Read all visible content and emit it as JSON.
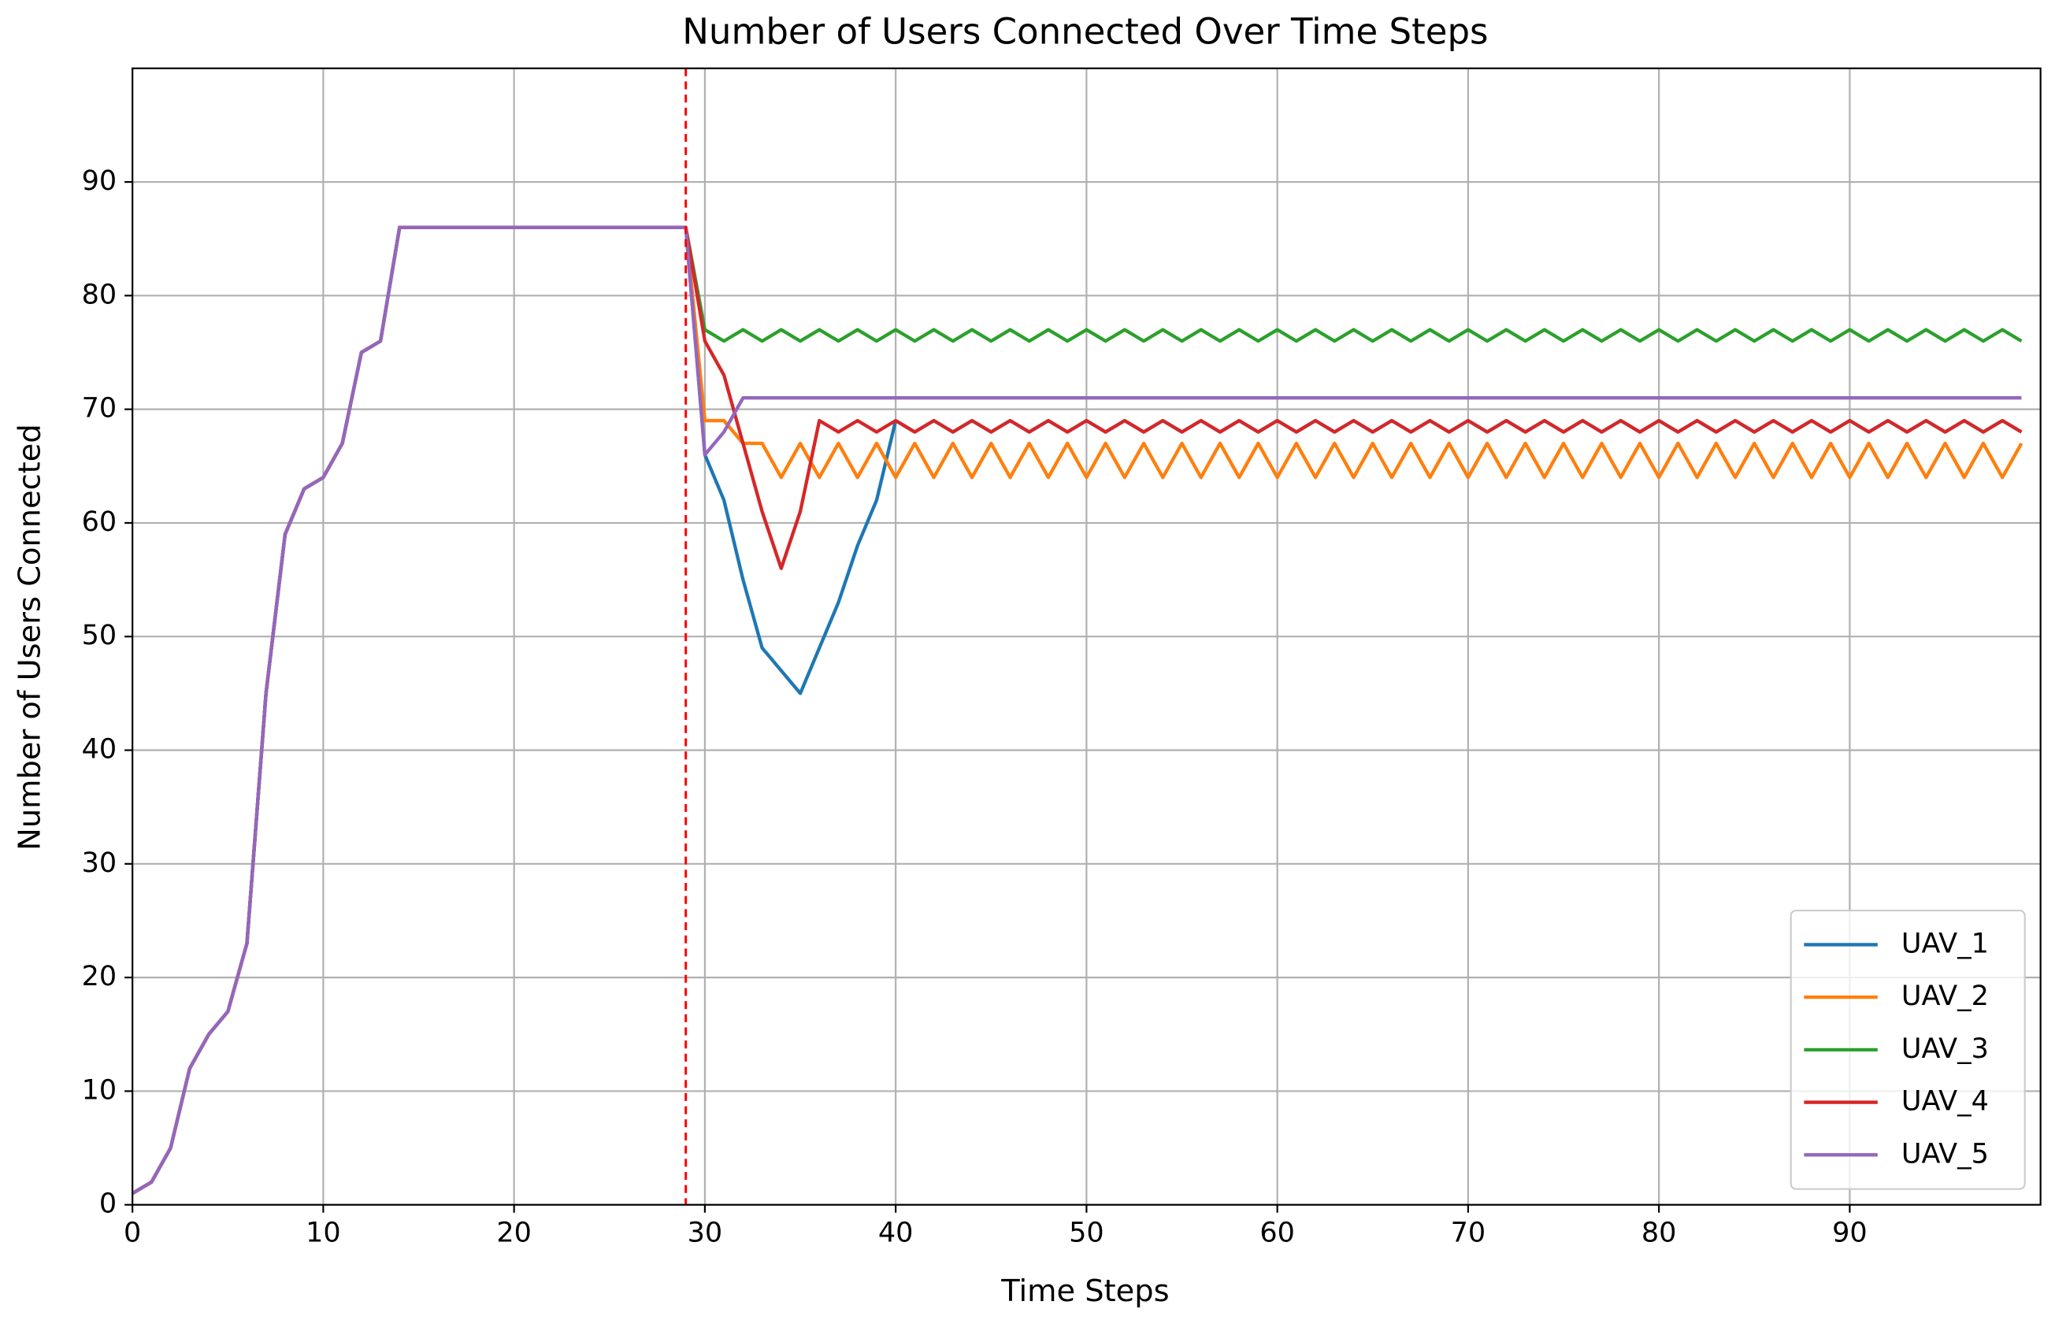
{
  "chart_data": {
    "type": "line",
    "title": "Number of Users Connected Over Time Steps",
    "x_label": "Time Steps",
    "y_label": "Number of Users Connected",
    "x": [
      0,
      1,
      2,
      3,
      4,
      5,
      6,
      7,
      8,
      9,
      10,
      11,
      12,
      13,
      14,
      15,
      16,
      17,
      18,
      19,
      20,
      21,
      22,
      23,
      24,
      25,
      26,
      27,
      28,
      29,
      30,
      31,
      32,
      33,
      34,
      35,
      36,
      37,
      38,
      39,
      40,
      41,
      42,
      43,
      44,
      45,
      46,
      47,
      48,
      49,
      50,
      51,
      52,
      53,
      54,
      55,
      56,
      57,
      58,
      59,
      60,
      61,
      62,
      63,
      64,
      65,
      66,
      67,
      68,
      69,
      70,
      71,
      72,
      73,
      74,
      75,
      76,
      77,
      78,
      79,
      80,
      81,
      82,
      83,
      84,
      85,
      86,
      87,
      88,
      89,
      90,
      91,
      92,
      93,
      94,
      95,
      96,
      97,
      98,
      99
    ],
    "series": [
      {
        "name": "UAV_1",
        "color": "#1f77b4",
        "values": [
          1,
          2,
          5,
          12,
          15,
          17,
          23,
          45,
          59,
          63,
          64,
          67,
          75,
          76,
          86,
          86,
          86,
          86,
          86,
          86,
          86,
          86,
          86,
          86,
          86,
          86,
          86,
          86,
          86,
          86,
          66,
          62,
          55,
          49,
          47,
          45,
          49,
          53,
          58,
          62,
          69,
          68,
          69,
          68,
          69,
          68,
          69,
          68,
          69,
          68,
          69,
          68,
          69,
          68,
          69,
          68,
          69,
          68,
          69,
          68,
          69,
          68,
          69,
          68,
          69,
          68,
          69,
          68,
          69,
          68,
          69,
          68,
          69,
          68,
          69,
          68,
          69,
          68,
          69,
          68,
          69,
          68,
          69,
          68,
          69,
          68,
          69,
          68,
          69,
          68,
          69,
          68,
          69,
          68,
          69,
          68,
          69,
          68,
          69,
          68
        ]
      },
      {
        "name": "UAV_2",
        "color": "#ff7f0e",
        "values": [
          1,
          2,
          5,
          12,
          15,
          17,
          23,
          45,
          59,
          63,
          64,
          67,
          75,
          76,
          86,
          86,
          86,
          86,
          86,
          86,
          86,
          86,
          86,
          86,
          86,
          86,
          86,
          86,
          86,
          86,
          69,
          69,
          67,
          67,
          64,
          67,
          64,
          67,
          64,
          67,
          64,
          67,
          64,
          67,
          64,
          67,
          64,
          67,
          64,
          67,
          64,
          67,
          64,
          67,
          64,
          67,
          64,
          67,
          64,
          67,
          64,
          67,
          64,
          67,
          64,
          67,
          64,
          67,
          64,
          67,
          64,
          67,
          64,
          67,
          64,
          67,
          64,
          67,
          64,
          67,
          64,
          67,
          64,
          67,
          64,
          67,
          64,
          67,
          64,
          67,
          64,
          67,
          64,
          67,
          64,
          67,
          64,
          67,
          64,
          67
        ]
      },
      {
        "name": "UAV_3",
        "color": "#2ca02c",
        "values": [
          1,
          2,
          5,
          12,
          15,
          17,
          23,
          45,
          59,
          63,
          64,
          67,
          75,
          76,
          86,
          86,
          86,
          86,
          86,
          86,
          86,
          86,
          86,
          86,
          86,
          86,
          86,
          86,
          86,
          86,
          77,
          76,
          77,
          76,
          77,
          76,
          77,
          76,
          77,
          76,
          77,
          76,
          77,
          76,
          77,
          76,
          77,
          76,
          77,
          76,
          77,
          76,
          77,
          76,
          77,
          76,
          77,
          76,
          77,
          76,
          77,
          76,
          77,
          76,
          77,
          76,
          77,
          76,
          77,
          76,
          77,
          76,
          77,
          76,
          77,
          76,
          77,
          76,
          77,
          76,
          77,
          76,
          77,
          76,
          77,
          76,
          77,
          76,
          77,
          76,
          77,
          76,
          77,
          76,
          77,
          76,
          77,
          76,
          77,
          76
        ]
      },
      {
        "name": "UAV_4",
        "color": "#d62728",
        "values": [
          1,
          2,
          5,
          12,
          15,
          17,
          23,
          45,
          59,
          63,
          64,
          67,
          75,
          76,
          86,
          86,
          86,
          86,
          86,
          86,
          86,
          86,
          86,
          86,
          86,
          86,
          86,
          86,
          86,
          86,
          76,
          73,
          67,
          61,
          56,
          61,
          69,
          68,
          69,
          68,
          69,
          68,
          69,
          68,
          69,
          68,
          69,
          68,
          69,
          68,
          69,
          68,
          69,
          68,
          69,
          68,
          69,
          68,
          69,
          68,
          69,
          68,
          69,
          68,
          69,
          68,
          69,
          68,
          69,
          68,
          69,
          68,
          69,
          68,
          69,
          68,
          69,
          68,
          69,
          68,
          69,
          68,
          69,
          68,
          69,
          68,
          69,
          68,
          69,
          68,
          69,
          68,
          69,
          68,
          69,
          68,
          69,
          68,
          69,
          68
        ]
      },
      {
        "name": "UAV_5",
        "color": "#9467bd",
        "values": [
          1,
          2,
          5,
          12,
          15,
          17,
          23,
          45,
          59,
          63,
          64,
          67,
          75,
          76,
          86,
          86,
          86,
          86,
          86,
          86,
          86,
          86,
          86,
          86,
          86,
          86,
          86,
          86,
          86,
          86,
          66,
          68,
          71,
          71,
          71,
          71,
          71,
          71,
          71,
          71,
          71,
          71,
          71,
          71,
          71,
          71,
          71,
          71,
          71,
          71,
          71,
          71,
          71,
          71,
          71,
          71,
          71,
          71,
          71,
          71,
          71,
          71,
          71,
          71,
          71,
          71,
          71,
          71,
          71,
          71,
          71,
          71,
          71,
          71,
          71,
          71,
          71,
          71,
          71,
          71,
          71,
          71,
          71,
          71,
          71,
          71,
          71,
          71,
          71,
          71,
          71,
          71,
          71,
          71,
          71,
          71,
          71,
          71,
          71,
          71
        ]
      }
    ],
    "vline_x": 29,
    "vline_color": "#ff0000",
    "xlim": [
      0,
      100
    ],
    "ylim": [
      0,
      100
    ],
    "xticks": [
      0,
      10,
      20,
      30,
      40,
      50,
      60,
      70,
      80,
      90
    ],
    "yticks": [
      0,
      10,
      20,
      30,
      40,
      50,
      60,
      70,
      80,
      90
    ],
    "grid": true,
    "legend": "lower right"
  }
}
